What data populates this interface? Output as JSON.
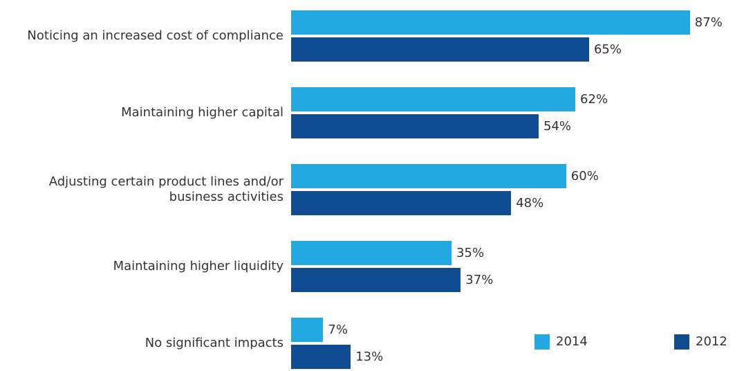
{
  "chart_data": {
    "type": "bar",
    "orientation": "horizontal",
    "categories": [
      "Noticing an increased cost of compliance",
      "Maintaining higher capital",
      "Adjusting certain product lines and/or business activities",
      "Maintaining higher liquidity",
      "No significant impacts"
    ],
    "series": [
      {
        "name": "2014",
        "color": "#23a9e1",
        "values": [
          87,
          62,
          60,
          35,
          7
        ],
        "value_labels": [
          "87%",
          "62%",
          "60%",
          "35%",
          "7%"
        ]
      },
      {
        "name": "2012",
        "color": "#0f4c92",
        "values": [
          65,
          54,
          48,
          37,
          13
        ],
        "value_labels": [
          "65%",
          "54%",
          "48%",
          "37%",
          "13%"
        ]
      }
    ],
    "legend": "bottom-right"
  }
}
